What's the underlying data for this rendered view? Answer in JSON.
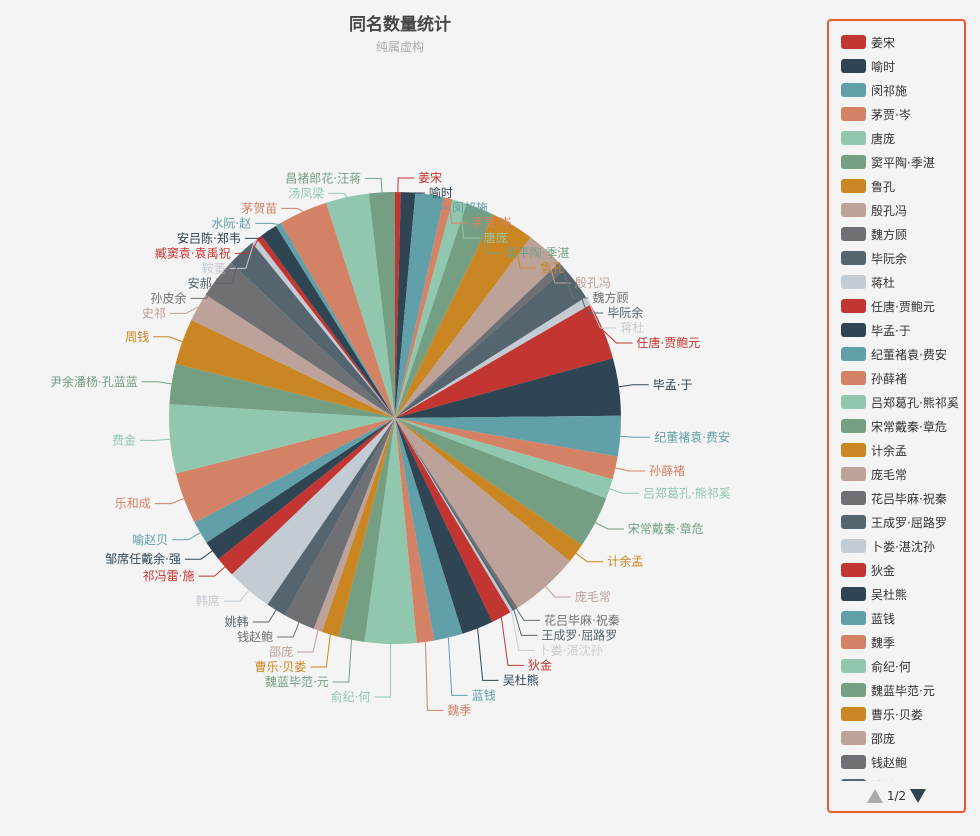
{
  "chart_data": {
    "type": "pie",
    "title": "同名数量统计",
    "subtitle": "纯属虚构",
    "legend_position": "right",
    "palette": [
      "#c23531",
      "#2f4554",
      "#61a0a8",
      "#d48265",
      "#91c7ae",
      "#749f83",
      "#ca8622",
      "#bda29a",
      "#6e7074",
      "#546570",
      "#c4ccd3"
    ],
    "slices": [
      {
        "name": "姜宋",
        "value": 2
      },
      {
        "name": "喻时",
        "value": 5
      },
      {
        "name": "闵祁施",
        "value": 10
      },
      {
        "name": "茅贾·岑",
        "value": 3
      },
      {
        "name": "唐庞",
        "value": 5
      },
      {
        "name": "窦平陶·季湛",
        "value": 10
      },
      {
        "name": "鲁孔",
        "value": 15
      },
      {
        "name": "殷孔冯",
        "value": 13
      },
      {
        "name": "魏方顾",
        "value": 3
      },
      {
        "name": "毕阮余",
        "value": 12
      },
      {
        "name": "蒋杜",
        "value": 3
      },
      {
        "name": "任唐·贾鲍元",
        "value": 20
      },
      {
        "name": "毕孟·于",
        "value": 20
      },
      {
        "name": "纪董褚袁·费安",
        "value": 14
      },
      {
        "name": "孙薛褚",
        "value": 8
      },
      {
        "name": "吕郑葛孔·熊祁奚",
        "value": 7
      },
      {
        "name": "宋常戴秦·章危",
        "value": 18
      },
      {
        "name": "计余孟",
        "value": 7
      },
      {
        "name": "庞毛常",
        "value": 24
      },
      {
        "name": "花吕毕麻·祝秦",
        "value": 1
      },
      {
        "name": "王成罗·屈路罗",
        "value": 1
      },
      {
        "name": "卜娄·湛沈孙",
        "value": 1
      },
      {
        "name": "狄金",
        "value": 7
      },
      {
        "name": "吴杜熊",
        "value": 11
      },
      {
        "name": "蓝钱",
        "value": 10
      },
      {
        "name": "魏季",
        "value": 6
      },
      {
        "name": "俞纪·何",
        "value": 18
      },
      {
        "name": "魏蓝毕范·元",
        "value": 9
      },
      {
        "name": "曹乐·贝娄",
        "value": 6
      },
      {
        "name": "邵庞",
        "value": 3
      },
      {
        "name": "钱赵鲍",
        "value": 11
      },
      {
        "name": "姚韩",
        "value": 7
      },
      {
        "name": "韩席",
        "value": 16
      },
      {
        "name": "祁冯雷·施",
        "value": 7
      },
      {
        "name": "邹席任戴余·强",
        "value": 7
      },
      {
        "name": "喻赵贝",
        "value": 8
      },
      {
        "name": "乐和成",
        "value": 18
      },
      {
        "name": "费金",
        "value": 24
      },
      {
        "name": "尹余潘杨·孔蓝蓝",
        "value": 14
      },
      {
        "name": "周钱",
        "value": 16
      },
      {
        "name": "史祁",
        "value": 10
      },
      {
        "name": "孙皮余",
        "value": 14
      },
      {
        "name": "安郝",
        "value": 10
      },
      {
        "name": "鞍董",
        "value": 2
      },
      {
        "name": "臧窦袁·袁禹祝",
        "value": 2
      },
      {
        "name": "安吕陈·郑韦",
        "value": 6
      },
      {
        "name": "水阮·赵",
        "value": 2
      },
      {
        "name": "茅贺苗",
        "value": 17
      },
      {
        "name": "汤凤梁",
        "value": 15
      },
      {
        "name": "昌褚郎花·汪蒋",
        "value": 9
      }
    ]
  },
  "legend": {
    "visible_items": [
      "姜宋",
      "喻时",
      "闵祁施",
      "茅贾·岑",
      "唐庞",
      "窦平陶·季湛",
      "鲁孔",
      "殷孔冯",
      "魏方顾",
      "毕阮余",
      "蒋杜",
      "任唐·贾鲍元",
      "毕孟·于",
      "纪董褚袁·费安",
      "孙薛褚",
      "吕郑葛孔·熊祁奚",
      "宋常戴秦·章危",
      "计余孟",
      "庞毛常",
      "花吕毕麻·祝秦",
      "王成罗·屈路罗",
      "卜娄·湛沈孙",
      "狄金",
      "吴杜熊",
      "蓝钱",
      "魏季",
      "俞纪·何",
      "魏蓝毕范·元",
      "曹乐·贝娄",
      "邵庞",
      "钱赵鲍",
      "姚韩"
    ],
    "page_text": "1/2",
    "prev_icon": "triangle-up-icon",
    "next_icon": "triangle-down-icon"
  }
}
